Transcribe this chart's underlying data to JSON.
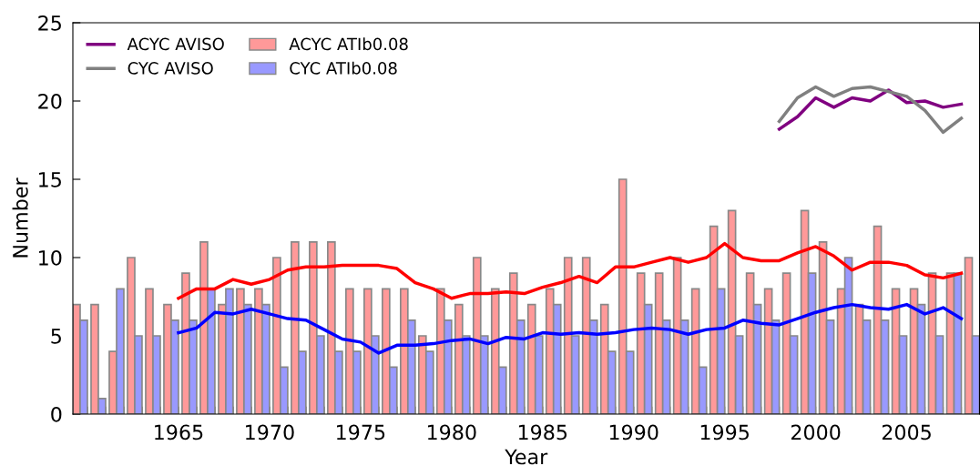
{
  "chart_data": {
    "type": "bar",
    "xlabel": "Year",
    "ylabel": "Number",
    "xlim": [
      1959.2,
      2009
    ],
    "ylim": [
      0,
      25
    ],
    "yticks": [
      0,
      5,
      10,
      15,
      20,
      25
    ],
    "xticks": [
      {
        "value": 1960,
        "label": null
      },
      {
        "value": 1961,
        "label": null
      },
      {
        "value": 1962,
        "label": null
      },
      {
        "value": 1963,
        "label": null
      },
      {
        "value": 1964,
        "label": null
      },
      1965,
      {
        "value": 1966,
        "label": null
      },
      {
        "value": 1967,
        "label": null
      },
      {
        "value": 1968,
        "label": null
      },
      {
        "value": 1969,
        "label": null
      },
      1970,
      {
        "value": 1971,
        "label": null
      },
      {
        "value": 1972,
        "label": null
      },
      {
        "value": 1973,
        "label": null
      },
      {
        "value": 1974,
        "label": null
      },
      1975,
      {
        "value": 1976,
        "label": null
      },
      {
        "value": 1977,
        "label": null
      },
      {
        "value": 1978,
        "label": null
      },
      {
        "value": 1979,
        "label": null
      },
      1980,
      {
        "value": 1981,
        "label": null
      },
      {
        "value": 1982,
        "label": null
      },
      {
        "value": 1983,
        "label": null
      },
      {
        "value": 1984,
        "label": null
      },
      1985,
      {
        "value": 1986,
        "label": null
      },
      {
        "value": 1987,
        "label": null
      },
      {
        "value": 1988,
        "label": null
      },
      {
        "value": 1989,
        "label": null
      },
      1990,
      {
        "value": 1991,
        "label": null
      },
      {
        "value": 1992,
        "label": null
      },
      {
        "value": 1993,
        "label": null
      },
      {
        "value": 1994,
        "label": null
      },
      1995,
      {
        "value": 1996,
        "label": null
      },
      {
        "value": 1997,
        "label": null
      },
      {
        "value": 1998,
        "label": null
      },
      {
        "value": 1999,
        "label": null
      },
      2000,
      {
        "value": 2001,
        "label": null
      },
      {
        "value": 2002,
        "label": null
      },
      {
        "value": 2003,
        "label": null
      },
      {
        "value": 2004,
        "label": null
      },
      2005,
      {
        "value": 2006,
        "label": null
      },
      {
        "value": 2007,
        "label": null
      },
      {
        "value": 2008,
        "label": null
      }
    ],
    "x": [
      1959.6,
      1960.6,
      1961.6,
      1962.6,
      1963.6,
      1964.6,
      1965.6,
      1966.6,
      1967.6,
      1968.6,
      1969.6,
      1970.6,
      1971.6,
      1972.6,
      1973.6,
      1974.6,
      1975.6,
      1976.6,
      1977.6,
      1978.6,
      1979.6,
      1980.6,
      1981.6,
      1982.6,
      1983.6,
      1984.6,
      1985.6,
      1986.6,
      1987.6,
      1988.6,
      1989.6,
      1990.6,
      1991.6,
      1992.6,
      1993.6,
      1994.6,
      1995.6,
      1996.6,
      1997.6,
      1998.6,
      1999.6,
      2000.6,
      2001.6,
      2002.6,
      2003.6,
      2004.6,
      2005.6,
      2006.6,
      2007.6,
      2008.6
    ],
    "grid": false,
    "legend": "top left",
    "series": [
      {
        "name": "ACYC AVISO",
        "type": "line",
        "color": "#800080",
        "x": [
          1998,
          1999,
          2000,
          2001,
          2002,
          2003,
          2004,
          2005,
          2006,
          2007,
          2008
        ],
        "values": [
          18.2,
          19.0,
          20.2,
          19.6,
          20.2,
          20.0,
          20.7,
          19.9,
          20.0,
          19.6,
          19.8
        ]
      },
      {
        "name": "CYC AVISO",
        "type": "line",
        "color": "#808080",
        "x": [
          1998,
          1999,
          2000,
          2001,
          2002,
          2003,
          2004,
          2005,
          2006,
          2007,
          2008
        ],
        "values": [
          18.7,
          20.2,
          20.9,
          20.3,
          20.8,
          20.9,
          20.6,
          20.3,
          19.4,
          18.0,
          18.9
        ]
      },
      {
        "name": "ACYC ATIb0.08",
        "color": "#ff9999",
        "values": [
          7,
          7,
          4,
          10,
          8,
          7,
          9,
          11,
          7,
          8,
          8,
          10,
          11,
          11,
          11,
          8,
          8,
          8,
          8,
          5,
          8,
          7,
          10,
          8,
          9,
          7,
          8,
          10,
          10,
          7,
          15,
          9,
          9,
          10,
          8,
          12,
          13,
          9,
          8,
          9,
          13,
          11,
          8,
          7,
          12,
          8,
          8,
          9,
          9,
          10
        ]
      },
      {
        "name": "CYC ATIb0.08",
        "color": "#9999ff",
        "values": [
          6,
          1,
          8,
          5,
          5,
          6,
          6,
          8,
          8,
          7,
          7,
          3,
          4,
          5,
          4,
          4,
          5,
          3,
          6,
          4,
          6,
          5,
          5,
          3,
          6,
          5,
          7,
          5,
          6,
          4,
          4,
          7,
          6,
          6,
          3,
          8,
          5,
          7,
          6,
          5,
          9,
          6,
          10,
          6,
          6,
          5,
          7,
          5,
          9,
          5
        ]
      },
      {
        "type": "line",
        "color": "#ff0000",
        "x": [
          1965,
          1966,
          1967,
          1968,
          1969,
          1970,
          1971,
          1972,
          1973,
          1974,
          1975,
          1976,
          1977,
          1978,
          1979,
          1980,
          1981,
          1982,
          1983,
          1984,
          1985,
          1986,
          1987,
          1988,
          1989,
          1990,
          1991,
          1992,
          1993,
          1994,
          1995,
          1996,
          1997,
          1998,
          1999,
          2000,
          2001,
          2002,
          2003,
          2004,
          2005,
          2006,
          2007,
          2008
        ],
        "values": [
          7.4,
          8.0,
          8.0,
          8.6,
          8.3,
          8.6,
          9.2,
          9.4,
          9.4,
          9.5,
          9.5,
          9.5,
          9.3,
          8.4,
          8.0,
          7.4,
          7.7,
          7.7,
          7.8,
          7.7,
          8.1,
          8.4,
          8.8,
          8.4,
          9.4,
          9.4,
          9.7,
          10.0,
          9.7,
          10.0,
          10.9,
          10.0,
          9.8,
          9.8,
          10.3,
          10.7,
          10.1,
          9.2,
          9.7,
          9.7,
          9.5,
          8.9,
          8.7,
          9.0
        ]
      },
      {
        "type": "line",
        "color": "#0000ff",
        "x": [
          1965,
          1966,
          1967,
          1968,
          1969,
          1970,
          1971,
          1972,
          1973,
          1974,
          1975,
          1976,
          1977,
          1978,
          1979,
          1980,
          1981,
          1982,
          1983,
          1984,
          1985,
          1986,
          1987,
          1988,
          1989,
          1990,
          1991,
          1992,
          1993,
          1994,
          1995,
          1996,
          1997,
          1998,
          1999,
          2000,
          2001,
          2002,
          2003,
          2004,
          2005,
          2006,
          2007,
          2008
        ],
        "values": [
          5.2,
          5.5,
          6.5,
          6.4,
          6.7,
          6.4,
          6.1,
          6.0,
          5.4,
          4.8,
          4.6,
          3.9,
          4.4,
          4.4,
          4.5,
          4.7,
          4.8,
          4.5,
          4.9,
          4.8,
          5.2,
          5.1,
          5.2,
          5.1,
          5.2,
          5.4,
          5.5,
          5.4,
          5.1,
          5.4,
          5.5,
          6.0,
          5.8,
          5.7,
          6.1,
          6.5,
          6.8,
          7.0,
          6.8,
          6.7,
          7.0,
          6.4,
          6.8,
          6.1
        ]
      }
    ]
  }
}
